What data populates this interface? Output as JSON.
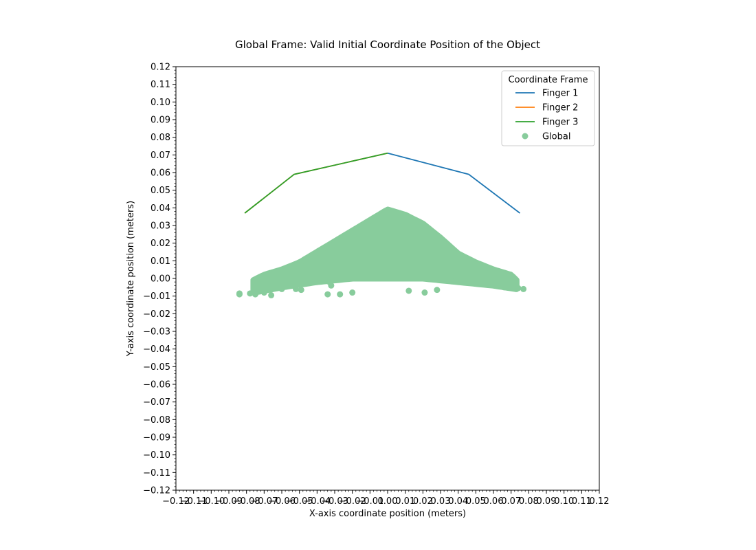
{
  "chart_data": {
    "type": "scatter",
    "title": "Global Frame: Valid Initial Coordinate Position of the Object",
    "xlabel": "X-axis coordinate position (meters)",
    "ylabel": "Y-axis coordinate position (meters)",
    "xlim": [
      -0.12,
      0.12
    ],
    "ylim": [
      -0.12,
      0.12
    ],
    "grid": false,
    "xticks": [
      "−0.12",
      "−0.11",
      "−0.10",
      "−0.09",
      "−0.08",
      "−0.07",
      "−0.06",
      "−0.05",
      "−0.04",
      "−0.03",
      "−0.02",
      "−0.01",
      "0.00",
      "0.01",
      "0.02",
      "0.03",
      "0.04",
      "0.05",
      "0.06",
      "0.07",
      "0.08",
      "0.09",
      "0.10",
      "0.11",
      "0.12"
    ],
    "yticks": [
      "0.12",
      "0.11",
      "0.10",
      "0.09",
      "0.08",
      "0.07",
      "0.06",
      "0.05",
      "0.04",
      "0.03",
      "0.02",
      "0.01",
      "0.00",
      "−0.01",
      "−0.02",
      "−0.03",
      "−0.04",
      "−0.05",
      "−0.06",
      "−0.07",
      "−0.08",
      "−0.09",
      "−0.10",
      "−0.11",
      "−0.12"
    ],
    "legend": {
      "title": "Coordinate Frame",
      "placement": "top-right",
      "entries": [
        {
          "name": "Finger 1",
          "kind": "line",
          "color": "#1f77b4"
        },
        {
          "name": "Finger 2",
          "kind": "line",
          "color": "#ff7f0e"
        },
        {
          "name": "Finger 3",
          "kind": "line",
          "color": "#2ca02c"
        },
        {
          "name": "Global",
          "kind": "marker",
          "color": "#88cc9c"
        }
      ]
    },
    "series": [
      {
        "name": "Finger 1",
        "kind": "line",
        "color": "#1f77b4",
        "x": [
          0.0,
          0.046,
          0.075
        ],
        "y": [
          0.071,
          0.059,
          0.037
        ]
      },
      {
        "name": "Finger 2",
        "kind": "line",
        "color": "#ff7f0e",
        "x": [
          0.0,
          -0.053,
          -0.081
        ],
        "y": [
          0.071,
          0.059,
          0.037
        ]
      },
      {
        "name": "Finger 3",
        "kind": "line",
        "color": "#2ca02c",
        "x": [
          0.0,
          -0.053,
          -0.081
        ],
        "y": [
          0.071,
          0.059,
          0.037
        ]
      },
      {
        "name": "Global",
        "kind": "scatter",
        "color": "#88cc9c",
        "region": {
          "upper_x": [
            -0.076,
            -0.07,
            -0.06,
            -0.05,
            -0.04,
            -0.03,
            -0.02,
            -0.01,
            0.0,
            0.01,
            0.02,
            0.03,
            0.04,
            0.05,
            0.06,
            0.07,
            0.073
          ],
          "upper_y": [
            -0.001,
            0.002,
            0.005,
            0.009,
            0.015,
            0.021,
            0.027,
            0.033,
            0.039,
            0.036,
            0.031,
            0.023,
            0.014,
            0.009,
            0.005,
            0.002,
            -0.001
          ],
          "lower_x": [
            -0.076,
            -0.06,
            -0.04,
            -0.02,
            0.0,
            0.02,
            0.04,
            0.06,
            0.073
          ],
          "lower_y": [
            -0.008,
            -0.005,
            -0.002,
            0.0,
            0.0,
            0.0,
            -0.002,
            -0.004,
            -0.006
          ]
        },
        "outliers": [
          {
            "x": -0.084,
            "y": -0.009
          },
          {
            "x": -0.084,
            "y": -0.0085
          },
          {
            "x": -0.078,
            "y": -0.0085
          },
          {
            "x": -0.075,
            "y": -0.009
          },
          {
            "x": -0.07,
            "y": -0.008
          },
          {
            "x": -0.066,
            "y": -0.0095
          },
          {
            "x": -0.06,
            "y": -0.006
          },
          {
            "x": -0.052,
            "y": -0.006
          },
          {
            "x": -0.049,
            "y": -0.0065
          },
          {
            "x": -0.034,
            "y": -0.009
          },
          {
            "x": -0.032,
            "y": -0.004
          },
          {
            "x": -0.033,
            "y": -0.002
          },
          {
            "x": -0.027,
            "y": -0.009
          },
          {
            "x": -0.02,
            "y": -0.008
          },
          {
            "x": 0.012,
            "y": -0.007
          },
          {
            "x": 0.021,
            "y": -0.008
          },
          {
            "x": 0.028,
            "y": -0.0065
          },
          {
            "x": 0.036,
            "y": -0.0015
          },
          {
            "x": 0.066,
            "y": -0.005
          },
          {
            "x": 0.074,
            "y": -0.0055
          },
          {
            "x": 0.077,
            "y": -0.006
          }
        ]
      }
    ]
  }
}
